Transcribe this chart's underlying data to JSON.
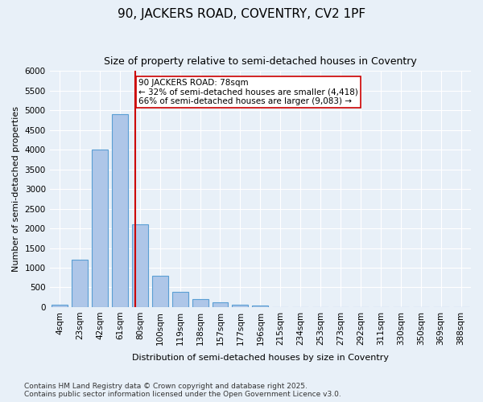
{
  "title": "90, JACKERS ROAD, COVENTRY, CV2 1PF",
  "subtitle": "Size of property relative to semi-detached houses in Coventry",
  "xlabel": "Distribution of semi-detached houses by size in Coventry",
  "ylabel": "Number of semi-detached properties",
  "bin_labels": [
    "4sqm",
    "23sqm",
    "42sqm",
    "61sqm",
    "80sqm",
    "100sqm",
    "119sqm",
    "138sqm",
    "157sqm",
    "177sqm",
    "196sqm",
    "215sqm",
    "234sqm",
    "253sqm",
    "273sqm",
    "292sqm",
    "311sqm",
    "330sqm",
    "350sqm",
    "369sqm",
    "388sqm"
  ],
  "values": [
    50,
    1200,
    4000,
    4900,
    2100,
    800,
    380,
    200,
    120,
    50,
    30,
    0,
    0,
    0,
    0,
    0,
    0,
    0,
    0,
    0,
    0
  ],
  "bar_color": "#aec6e8",
  "bar_edge_color": "#5a9fd4",
  "vline_x_index": 3.78,
  "vline_color": "#cc0000",
  "ylim": [
    0,
    6000
  ],
  "yticks": [
    0,
    500,
    1000,
    1500,
    2000,
    2500,
    3000,
    3500,
    4000,
    4500,
    5000,
    5500,
    6000
  ],
  "annotation_text": "90 JACKERS ROAD: 78sqm\n← 32% of semi-detached houses are smaller (4,418)\n66% of semi-detached houses are larger (9,083) →",
  "annotation_box_color": "#ffffff",
  "annotation_box_edge": "#cc0000",
  "footer": "Contains HM Land Registry data © Crown copyright and database right 2025.\nContains public sector information licensed under the Open Government Licence v3.0.",
  "bg_color": "#e8f0f8",
  "plot_bg_color": "#e8f0f8",
  "title_fontsize": 11,
  "subtitle_fontsize": 9,
  "axis_fontsize": 8,
  "tick_fontsize": 7.5,
  "footer_fontsize": 6.5
}
